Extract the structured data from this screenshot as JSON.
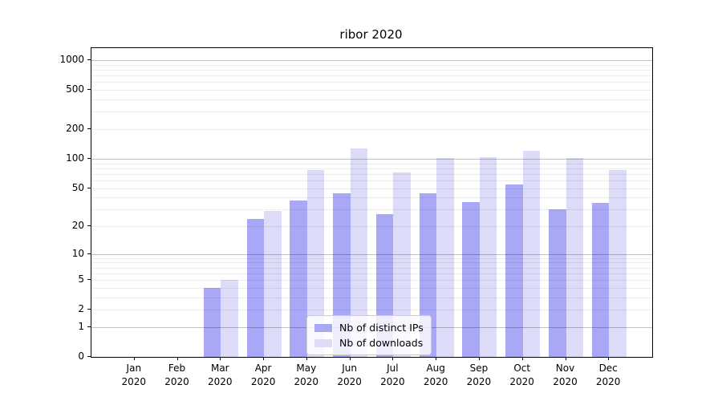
{
  "title": "ribor 2020",
  "chart_data": {
    "type": "bar",
    "title": "ribor 2020",
    "categories": [
      "Jan 2020",
      "Feb 2020",
      "Mar 2020",
      "Apr 2020",
      "May 2020",
      "Jun 2020",
      "Jul 2020",
      "Aug 2020",
      "Sep 2020",
      "Oct 2020",
      "Nov 2020",
      "Dec 2020"
    ],
    "series": [
      {
        "name": "Nb of distinct IPs",
        "color": "#a8a8f6",
        "values": [
          0,
          0,
          4,
          24,
          37,
          44,
          27,
          44,
          36,
          55,
          30,
          35
        ]
      },
      {
        "name": "Nb of downloads",
        "color": "#dcdcf8",
        "values": [
          0,
          0,
          5,
          29,
          76,
          128,
          72,
          101,
          104,
          120,
          101,
          77
        ]
      }
    ],
    "xlabel": "",
    "ylabel": "",
    "yscale": "log1p",
    "yticks": [
      0,
      1,
      2,
      5,
      10,
      20,
      50,
      100,
      200,
      500,
      1000
    ],
    "ylim": [
      0,
      1325
    ],
    "grid": true,
    "legend_position": "lower center"
  },
  "colors": {
    "series1": "#a8a8f6",
    "series2": "#dcdcf8",
    "grid_minor": "rgba(0,0,0,0.07)",
    "grid_decade": "rgba(0,0,0,0.24)",
    "spine": "#000000",
    "background": "#ffffff"
  }
}
